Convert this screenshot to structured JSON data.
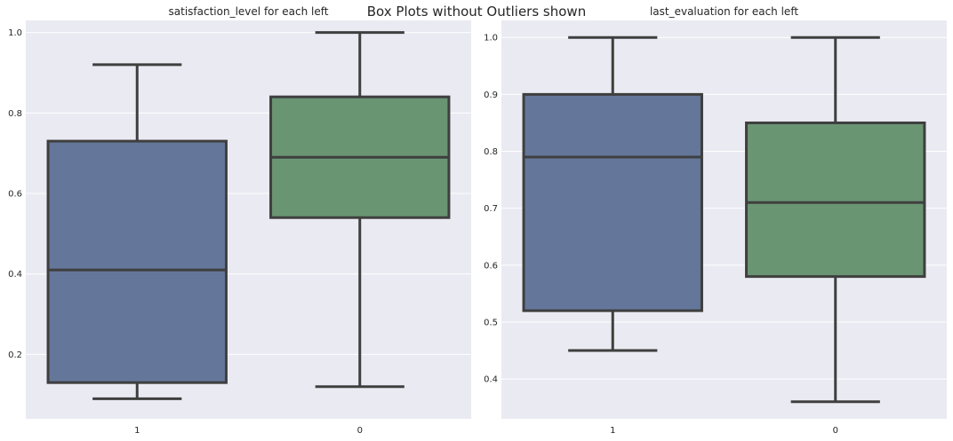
{
  "figure": {
    "suptitle": "Box Plots without Outliers shown"
  },
  "colors": {
    "background": "#EAEAF2",
    "grid": "#FFFFFF",
    "line": "#3F3F3F",
    "box_left": "#64779A",
    "box_stay": "#6A9573"
  },
  "chart_data": [
    {
      "type": "box",
      "title": "satisfaction_level for each left",
      "xlabel": "",
      "ylabel": "",
      "categories": [
        "1",
        "0"
      ],
      "ylim": [
        0.04,
        1.03
      ],
      "yticks": [
        0.2,
        0.4,
        0.6,
        0.8,
        1.0
      ],
      "ytick_labels": [
        "0.2",
        "0.4",
        "0.6",
        "0.8",
        "1.0"
      ],
      "grid": true,
      "boxes": [
        {
          "category": "1",
          "whisker_low": 0.09,
          "q1": 0.13,
          "median": 0.41,
          "q3": 0.73,
          "whisker_high": 0.92,
          "color": "#64779A"
        },
        {
          "category": "0",
          "whisker_low": 0.12,
          "q1": 0.54,
          "median": 0.69,
          "q3": 0.84,
          "whisker_high": 1.0,
          "color": "#6A9573"
        }
      ]
    },
    {
      "type": "box",
      "title": "last_evaluation for each left",
      "xlabel": "",
      "ylabel": "",
      "categories": [
        "1",
        "0"
      ],
      "ylim": [
        0.33,
        1.03
      ],
      "yticks": [
        0.4,
        0.5,
        0.6,
        0.7,
        0.8,
        0.9,
        1.0
      ],
      "ytick_labels": [
        "0.4",
        "0.5",
        "0.6",
        "0.7",
        "0.8",
        "0.9",
        "1.0"
      ],
      "grid": true,
      "boxes": [
        {
          "category": "1",
          "whisker_low": 0.45,
          "q1": 0.52,
          "median": 0.79,
          "q3": 0.9,
          "whisker_high": 1.0,
          "color": "#64779A"
        },
        {
          "category": "0",
          "whisker_low": 0.36,
          "q1": 0.58,
          "median": 0.71,
          "q3": 0.85,
          "whisker_high": 1.0,
          "color": "#6A9573"
        }
      ]
    }
  ]
}
